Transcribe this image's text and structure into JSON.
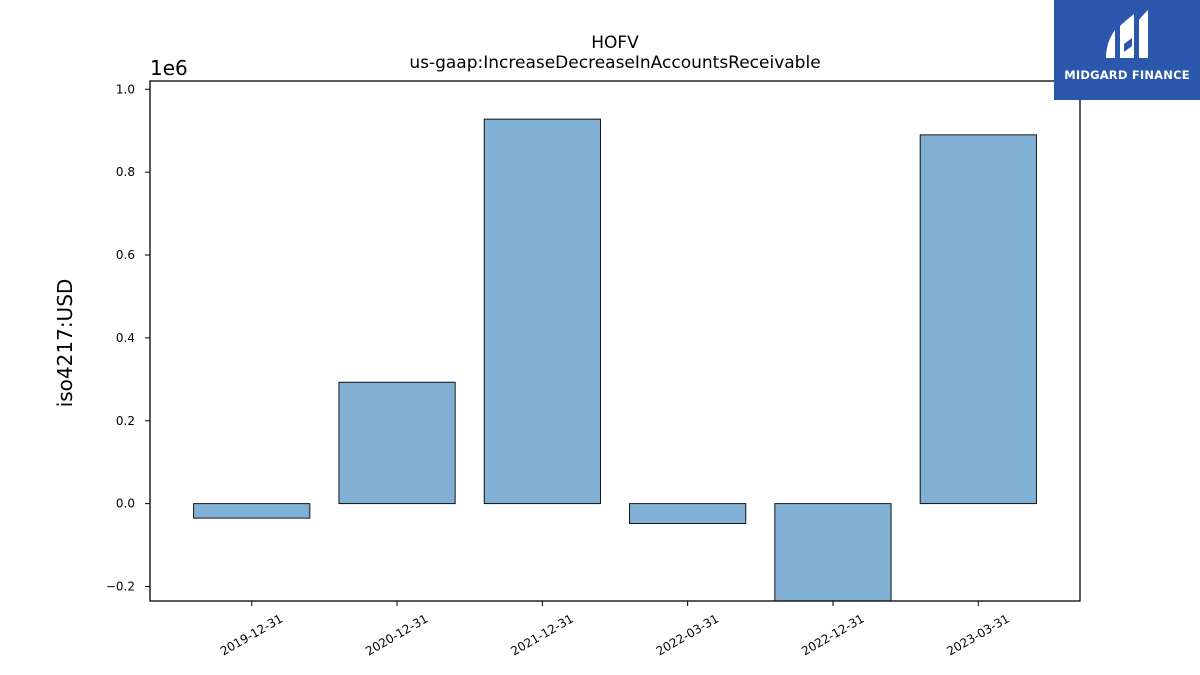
{
  "chart_data": {
    "type": "bar",
    "title": "HOFV",
    "subtitle": "us-gaap:IncreaseDecreaseInAccountsReceivable",
    "ylabel": "iso4217:USD",
    "y_offset_label": "1e6",
    "categories": [
      "2019-12-31",
      "2020-12-31",
      "2021-12-31",
      "2022-03-31",
      "2022-12-31",
      "2023-03-31"
    ],
    "values": [
      -35000,
      293000,
      928000,
      -48000,
      -235000,
      890000
    ],
    "ylim": [
      -0.235,
      1.02
    ],
    "y_ticks": [
      -0.2,
      0.0,
      0.2,
      0.4,
      0.6,
      0.8,
      1.0
    ],
    "y_tick_labels": [
      "−0.2",
      "0.0",
      "0.2",
      "0.4",
      "0.6",
      "0.8",
      "1.0"
    ],
    "y_scale": 1000000,
    "bar_color": "#80b0d3",
    "grid": false
  },
  "logo": {
    "text": "MIDGARD FINANCE",
    "background": "#2b58ac"
  }
}
